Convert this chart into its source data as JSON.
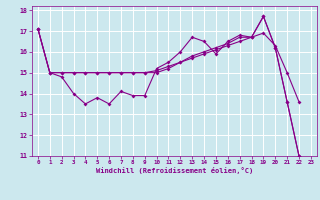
{
  "xlabel": "Windchill (Refroidissement éolien,°C)",
  "background_color": "#cce8ee",
  "line_color": "#880088",
  "grid_color": "#ffffff",
  "xlim": [
    -0.5,
    23.5
  ],
  "ylim": [
    11,
    18.2
  ],
  "yticks": [
    11,
    12,
    13,
    14,
    15,
    16,
    17,
    18
  ],
  "xticks": [
    0,
    1,
    2,
    3,
    4,
    5,
    6,
    7,
    8,
    9,
    10,
    11,
    12,
    13,
    14,
    15,
    16,
    17,
    18,
    19,
    20,
    21,
    22,
    23
  ],
  "line1_x": [
    0,
    1,
    2,
    3,
    4,
    5,
    6,
    7,
    8,
    9,
    10,
    11,
    12,
    13,
    14,
    15,
    16,
    17,
    18,
    19,
    20,
    21,
    22
  ],
  "line1_y": [
    17.1,
    15.0,
    14.8,
    14.0,
    13.5,
    13.8,
    13.5,
    14.1,
    13.9,
    13.9,
    15.2,
    15.5,
    16.0,
    16.7,
    16.5,
    15.9,
    16.5,
    16.8,
    16.7,
    17.7,
    16.2,
    13.6,
    11.0
  ],
  "line2_x": [
    0,
    1,
    2,
    3,
    4,
    5,
    6,
    7,
    8,
    9,
    10,
    11,
    12,
    13,
    14,
    15,
    16,
    17,
    18,
    19,
    20,
    21,
    22
  ],
  "line2_y": [
    17.1,
    15.0,
    15.0,
    15.0,
    15.0,
    15.0,
    15.0,
    15.0,
    15.0,
    15.0,
    15.1,
    15.3,
    15.5,
    15.7,
    15.9,
    16.1,
    16.3,
    16.5,
    16.7,
    16.9,
    16.3,
    15.0,
    13.6
  ],
  "line3_x": [
    0,
    1,
    2,
    3,
    4,
    5,
    6,
    7,
    8,
    9,
    10,
    11,
    12,
    13,
    14,
    15,
    16,
    17,
    18,
    19,
    20,
    21,
    22
  ],
  "line3_y": [
    17.1,
    15.0,
    15.0,
    15.0,
    15.0,
    15.0,
    15.0,
    15.0,
    15.0,
    15.0,
    15.0,
    15.2,
    15.5,
    15.8,
    16.0,
    16.2,
    16.4,
    16.7,
    16.7,
    17.7,
    16.2,
    13.6,
    11.0
  ]
}
